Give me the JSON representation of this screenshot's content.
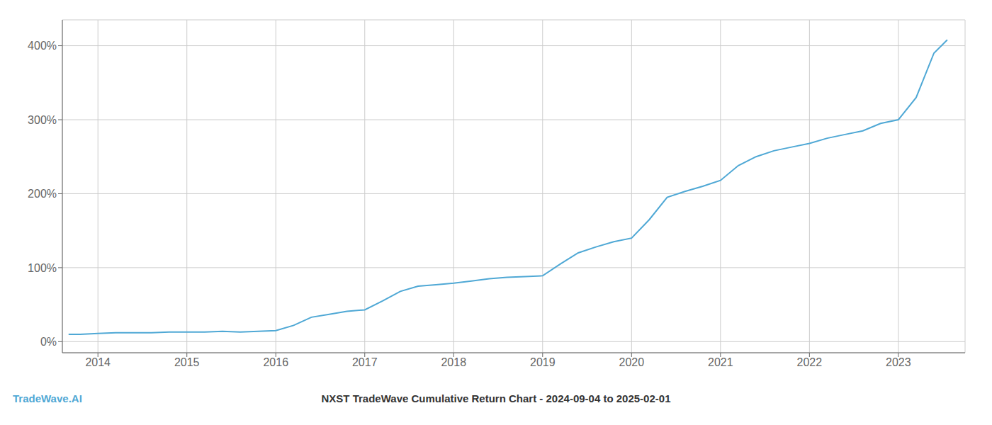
{
  "chart_data": {
    "type": "line",
    "title": "NXST TradeWave Cumulative Return Chart - 2024-09-04 to 2025-02-01",
    "annotations": [
      "TradeWave.AI"
    ],
    "x": [
      2013.67,
      2013.8,
      2014.0,
      2014.2,
      2014.4,
      2014.6,
      2014.8,
      2015.0,
      2015.2,
      2015.4,
      2015.6,
      2015.8,
      2016.0,
      2016.2,
      2016.4,
      2016.6,
      2016.8,
      2017.0,
      2017.2,
      2017.4,
      2017.6,
      2017.8,
      2018.0,
      2018.2,
      2018.4,
      2018.6,
      2018.8,
      2019.0,
      2019.2,
      2019.4,
      2019.6,
      2019.8,
      2020.0,
      2020.2,
      2020.4,
      2020.6,
      2020.8,
      2021.0,
      2021.2,
      2021.4,
      2021.6,
      2021.8,
      2022.0,
      2022.2,
      2022.4,
      2022.6,
      2022.8,
      2023.0,
      2023.2,
      2023.4,
      2023.55
    ],
    "values": [
      10,
      10,
      11,
      12,
      12,
      12,
      13,
      13,
      13,
      14,
      13,
      14,
      15,
      22,
      33,
      37,
      41,
      43,
      55,
      68,
      75,
      77,
      79,
      82,
      85,
      87,
      88,
      89,
      105,
      120,
      128,
      135,
      140,
      165,
      195,
      203,
      210,
      218,
      238,
      250,
      258,
      263,
      268,
      275,
      280,
      285,
      295,
      300,
      330,
      390,
      408
    ],
    "color": "#4fa8d5",
    "xlim": [
      2013.6,
      2023.75
    ],
    "xticks": [
      2014,
      2015,
      2016,
      2017,
      2018,
      2019,
      2020,
      2021,
      2022,
      2023
    ],
    "ylim": [
      -15,
      435
    ],
    "yticks": [
      {
        "value": 0,
        "label": "0%"
      },
      {
        "value": 100,
        "label": "100%"
      },
      {
        "value": 200,
        "label": "200%"
      },
      {
        "value": 300,
        "label": "300%"
      },
      {
        "value": 400,
        "label": "400%"
      }
    ],
    "grid": true
  }
}
